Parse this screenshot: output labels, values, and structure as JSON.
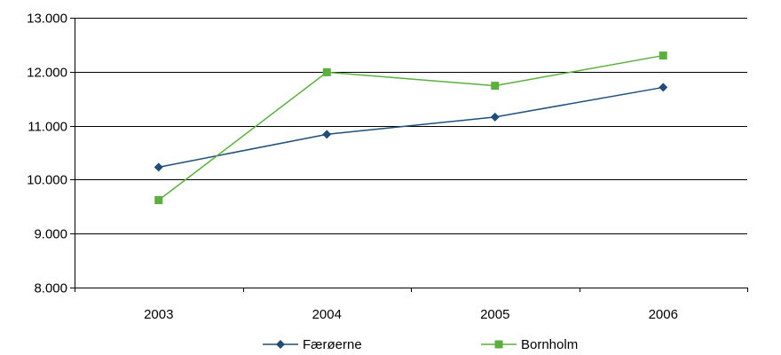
{
  "chart_data": {
    "type": "line",
    "title": "",
    "xlabel": "",
    "ylabel": "",
    "categories": [
      "2003",
      "2004",
      "2005",
      "2006"
    ],
    "ylim": [
      8000,
      13000
    ],
    "yticks": [
      8000,
      9000,
      10000,
      11000,
      12000,
      13000
    ],
    "ytick_labels": [
      "8.000",
      "9.000",
      "10.000",
      "11.000",
      "12.000",
      "13.000"
    ],
    "grid": "horizontal",
    "legend_position": "bottom",
    "series": [
      {
        "name": "Færøerne",
        "values": [
          10230,
          10840,
          11160,
          11710
        ],
        "color": "#1F4E79",
        "marker": "diamond"
      },
      {
        "name": "Bornholm",
        "values": [
          9620,
          11990,
          11740,
          12300
        ],
        "color": "#5BAF3E",
        "marker": "square"
      }
    ]
  }
}
